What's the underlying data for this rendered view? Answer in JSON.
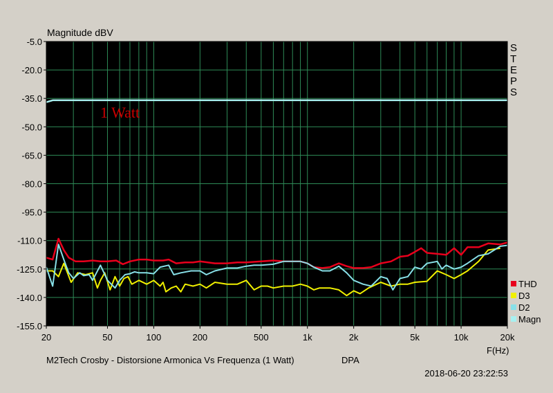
{
  "chart_data": {
    "type": "line",
    "title": "Magnitude dBV",
    "xlabel": "F(Hz)",
    "ylabel": "",
    "x_scale": "log",
    "xlim": [
      20,
      20000
    ],
    "ylim": [
      -155,
      -5
    ],
    "grid": true,
    "legend_position": "bottom-right",
    "x_tick_labels": [
      {
        "value": 20,
        "label": "20"
      },
      {
        "value": 50,
        "label": "50"
      },
      {
        "value": 100,
        "label": "100"
      },
      {
        "value": 200,
        "label": "200"
      },
      {
        "value": 500,
        "label": "500"
      },
      {
        "value": 1000,
        "label": "1k"
      },
      {
        "value": 2000,
        "label": "2k"
      },
      {
        "value": 5000,
        "label": "5k"
      },
      {
        "value": 10000,
        "label": "10k"
      },
      {
        "value": 20000,
        "label": "20k"
      }
    ],
    "y_tick_labels": [
      {
        "value": -5,
        "label": "-5.0"
      },
      {
        "value": -20,
        "label": "-20.0"
      },
      {
        "value": -35,
        "label": "-35.0"
      },
      {
        "value": -50,
        "label": "-50.0"
      },
      {
        "value": -65,
        "label": "-65.0"
      },
      {
        "value": -80,
        "label": "-80.0"
      },
      {
        "value": -95,
        "label": "-95.0"
      },
      {
        "value": -110,
        "label": "-110.0"
      },
      {
        "value": -125,
        "label": "-125.0"
      },
      {
        "value": -140,
        "label": "-140.0"
      },
      {
        "value": -155,
        "label": "-155.0"
      }
    ],
    "right_axis_label": [
      "S",
      "T",
      "E",
      "P",
      "S"
    ],
    "annotation": {
      "text": "1 Watt",
      "color": "#cc0000"
    },
    "background_color": "#000000",
    "grid_color": "#2e8b57",
    "series": [
      {
        "name": "THD",
        "color": "#e8001c",
        "width": 2.5,
        "points": [
          [
            20,
            -119
          ],
          [
            22,
            -120
          ],
          [
            24,
            -109
          ],
          [
            26,
            -115
          ],
          [
            28,
            -119
          ],
          [
            31,
            -121
          ],
          [
            35,
            -121
          ],
          [
            40,
            -120.5
          ],
          [
            45,
            -121
          ],
          [
            50,
            -121
          ],
          [
            57,
            -120.5
          ],
          [
            63,
            -122.5
          ],
          [
            70,
            -121
          ],
          [
            80,
            -120
          ],
          [
            90,
            -120
          ],
          [
            100,
            -120.5
          ],
          [
            115,
            -120.5
          ],
          [
            125,
            -120
          ],
          [
            140,
            -122
          ],
          [
            160,
            -121.5
          ],
          [
            180,
            -121.5
          ],
          [
            200,
            -121
          ],
          [
            250,
            -122
          ],
          [
            300,
            -122
          ],
          [
            350,
            -121.5
          ],
          [
            400,
            -121.5
          ],
          [
            500,
            -121
          ],
          [
            600,
            -120.5
          ],
          [
            700,
            -121
          ],
          [
            800,
            -121
          ],
          [
            900,
            -121
          ],
          [
            1000,
            -122
          ],
          [
            1100,
            -124
          ],
          [
            1250,
            -124.5
          ],
          [
            1400,
            -124
          ],
          [
            1600,
            -122
          ],
          [
            1800,
            -123.5
          ],
          [
            2000,
            -124.5
          ],
          [
            2300,
            -124.5
          ],
          [
            2600,
            -124
          ],
          [
            3000,
            -122
          ],
          [
            3500,
            -121
          ],
          [
            4000,
            -118.5
          ],
          [
            4500,
            -118
          ],
          [
            5000,
            -116
          ],
          [
            5500,
            -114
          ],
          [
            6000,
            -116.5
          ],
          [
            7000,
            -117
          ],
          [
            8000,
            -117.5
          ],
          [
            9000,
            -114
          ],
          [
            10000,
            -117.5
          ],
          [
            11000,
            -113.5
          ],
          [
            13000,
            -113.5
          ],
          [
            15000,
            -111.5
          ],
          [
            18000,
            -112
          ],
          [
            20000,
            -111
          ]
        ]
      },
      {
        "name": "D3",
        "color": "#f0f000",
        "width": 2,
        "points": [
          [
            20,
            -126
          ],
          [
            22,
            -126
          ],
          [
            24,
            -129
          ],
          [
            26,
            -122
          ],
          [
            29,
            -132
          ],
          [
            32,
            -127
          ],
          [
            36,
            -128
          ],
          [
            40,
            -127
          ],
          [
            43,
            -135
          ],
          [
            45,
            -131
          ],
          [
            48,
            -127
          ],
          [
            52,
            -136
          ],
          [
            56,
            -129
          ],
          [
            60,
            -134
          ],
          [
            64,
            -130
          ],
          [
            68,
            -129
          ],
          [
            72,
            -133
          ],
          [
            80,
            -131
          ],
          [
            90,
            -133
          ],
          [
            100,
            -131
          ],
          [
            110,
            -134
          ],
          [
            115,
            -132
          ],
          [
            120,
            -137
          ],
          [
            130,
            -135
          ],
          [
            140,
            -134
          ],
          [
            150,
            -137
          ],
          [
            160,
            -133
          ],
          [
            180,
            -134
          ],
          [
            200,
            -133
          ],
          [
            220,
            -135
          ],
          [
            250,
            -132
          ],
          [
            300,
            -133
          ],
          [
            350,
            -133
          ],
          [
            400,
            -131
          ],
          [
            450,
            -136
          ],
          [
            500,
            -134
          ],
          [
            550,
            -134
          ],
          [
            600,
            -135
          ],
          [
            700,
            -134
          ],
          [
            800,
            -134
          ],
          [
            900,
            -133
          ],
          [
            1000,
            -134
          ],
          [
            1100,
            -136
          ],
          [
            1200,
            -135
          ],
          [
            1400,
            -135
          ],
          [
            1600,
            -136
          ],
          [
            1800,
            -139
          ],
          [
            2000,
            -136.5
          ],
          [
            2200,
            -138
          ],
          [
            2500,
            -135
          ],
          [
            3000,
            -132
          ],
          [
            3500,
            -134
          ],
          [
            4000,
            -133
          ],
          [
            4500,
            -133
          ],
          [
            5000,
            -132
          ],
          [
            6000,
            -131.5
          ],
          [
            7000,
            -126
          ],
          [
            8000,
            -128
          ],
          [
            9000,
            -130
          ],
          [
            10000,
            -128
          ],
          [
            11000,
            -126
          ],
          [
            13000,
            -121
          ],
          [
            15000,
            -115
          ],
          [
            18000,
            -114
          ]
        ]
      },
      {
        "name": "D2",
        "color": "#88e0e8",
        "width": 2,
        "points": [
          [
            20,
            -124
          ],
          [
            22,
            -134
          ],
          [
            24,
            -112
          ],
          [
            26,
            -120
          ],
          [
            28,
            -127
          ],
          [
            30,
            -130
          ],
          [
            33,
            -127
          ],
          [
            35,
            -128.5
          ],
          [
            38,
            -128
          ],
          [
            40,
            -131
          ],
          [
            45,
            -123
          ],
          [
            50,
            -131
          ],
          [
            56,
            -135
          ],
          [
            60,
            -131
          ],
          [
            65,
            -128
          ],
          [
            70,
            -127.5
          ],
          [
            75,
            -126.5
          ],
          [
            80,
            -127
          ],
          [
            90,
            -127
          ],
          [
            100,
            -127.5
          ],
          [
            110,
            -124
          ],
          [
            125,
            -123
          ],
          [
            135,
            -128
          ],
          [
            150,
            -127
          ],
          [
            175,
            -126
          ],
          [
            200,
            -126
          ],
          [
            220,
            -128
          ],
          [
            250,
            -126
          ],
          [
            300,
            -124.5
          ],
          [
            350,
            -124.5
          ],
          [
            400,
            -123.5
          ],
          [
            450,
            -123
          ],
          [
            500,
            -123
          ],
          [
            600,
            -122.5
          ],
          [
            700,
            -121
          ],
          [
            800,
            -121
          ],
          [
            900,
            -121
          ],
          [
            1000,
            -122
          ],
          [
            1100,
            -124
          ],
          [
            1250,
            -126
          ],
          [
            1400,
            -126
          ],
          [
            1600,
            -123.5
          ],
          [
            1800,
            -127
          ],
          [
            2000,
            -131
          ],
          [
            2300,
            -133
          ],
          [
            2600,
            -134
          ],
          [
            3000,
            -129
          ],
          [
            3300,
            -130
          ],
          [
            3600,
            -136
          ],
          [
            4000,
            -130
          ],
          [
            4500,
            -129
          ],
          [
            5000,
            -124
          ],
          [
            5500,
            -125
          ],
          [
            6000,
            -122
          ],
          [
            7000,
            -121
          ],
          [
            7500,
            -125
          ],
          [
            8000,
            -123
          ],
          [
            9000,
            -125
          ],
          [
            10000,
            -124
          ],
          [
            11000,
            -122
          ],
          [
            13000,
            -118
          ],
          [
            15000,
            -117
          ],
          [
            18000,
            -113
          ],
          [
            20000,
            -112.5
          ]
        ]
      },
      {
        "name": "Magn",
        "color": "#a8f0f0",
        "width": 2.5,
        "points": [
          [
            20,
            -37
          ],
          [
            22,
            -36
          ],
          [
            30,
            -36
          ],
          [
            100,
            -36
          ],
          [
            1000,
            -36
          ],
          [
            5000,
            -36
          ],
          [
            10000,
            -36
          ],
          [
            20000,
            -36
          ]
        ]
      }
    ]
  },
  "footer": {
    "caption": "M2Tech Crosby - Distorsione Armonica Vs Frequenza (1 Watt)",
    "source": "DPA",
    "timestamp": "2018-06-20 23:22:53"
  }
}
